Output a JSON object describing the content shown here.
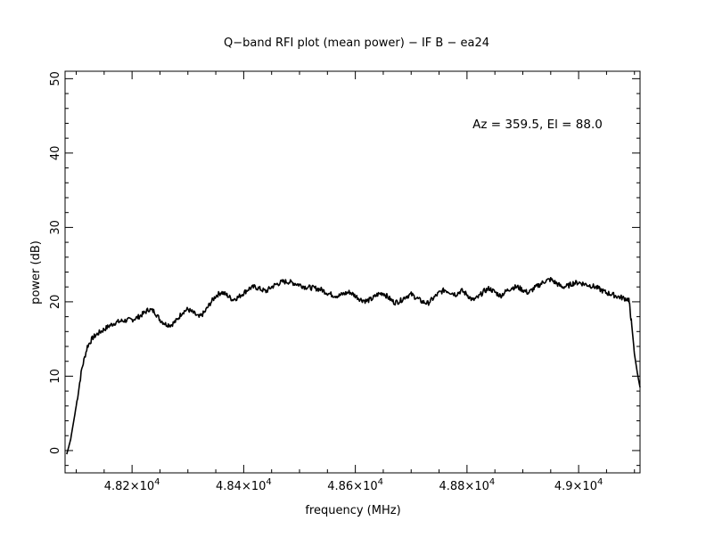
{
  "chart_data": {
    "type": "line",
    "title": "Q−band RFI plot (mean power) − IF B − ea24",
    "xlabel": "frequency (MHz)",
    "ylabel": "power (dB)",
    "annotation": "Az = 359.5, El = 88.0",
    "xlim": [
      48080,
      49110
    ],
    "ylim": [
      -3,
      51
    ],
    "x_ticks": [
      48200,
      48400,
      48600,
      48800,
      49000
    ],
    "x_tick_labels": [
      {
        "mantissa": "4.82×10",
        "exp": "4"
      },
      {
        "mantissa": "4.84×10",
        "exp": "4"
      },
      {
        "mantissa": "4.86×10",
        "exp": "4"
      },
      {
        "mantissa": "4.88×10",
        "exp": "4"
      },
      {
        "mantissa": "4.9×10",
        "exp": "4"
      }
    ],
    "y_ticks": [
      0,
      10,
      20,
      30,
      40,
      50
    ],
    "y_tick_labels": [
      "0",
      "10",
      "20",
      "30",
      "40",
      "50"
    ],
    "line_color": "#000000",
    "series": [
      {
        "x": [
          48083,
          48090,
          48100,
          48110,
          48120,
          48130,
          48140,
          48150,
          48160,
          48170,
          48180,
          48190,
          48200,
          48210,
          48220,
          48230,
          48240,
          48250,
          48260,
          48270,
          48280,
          48290,
          48300,
          48310,
          48320,
          48330,
          48340,
          48350,
          48360,
          48370,
          48380,
          48390,
          48400,
          48410,
          48420,
          48430,
          48440,
          48450,
          48460,
          48470,
          48480,
          48490,
          48500,
          48510,
          48520,
          48530,
          48540,
          48550,
          48560,
          48570,
          48580,
          48590,
          48600,
          48610,
          48620,
          48630,
          48640,
          48650,
          48660,
          48670,
          48680,
          48690,
          48700,
          48710,
          48720,
          48730,
          48740,
          48750,
          48760,
          48770,
          48780,
          48790,
          48800,
          48810,
          48820,
          48830,
          48840,
          48850,
          48860,
          48870,
          48880,
          48890,
          48900,
          48910,
          48920,
          48930,
          48940,
          48950,
          48960,
          48970,
          48980,
          48990,
          49000,
          49010,
          49020,
          49030,
          49040,
          49050,
          49060,
          49070,
          49080,
          49090,
          49095,
          49100,
          49105,
          49110
        ],
        "y": [
          -0.5,
          1.5,
          6,
          11,
          14,
          15.2,
          15.8,
          16.3,
          16.8,
          17.2,
          17.4,
          17.5,
          17.6,
          17.9,
          18.4,
          19.0,
          18.7,
          17.6,
          17.0,
          16.9,
          17.5,
          18.6,
          19.0,
          18.5,
          17.9,
          18.6,
          19.8,
          20.8,
          21.3,
          20.9,
          20.3,
          20.6,
          21.2,
          21.8,
          22.0,
          21.7,
          21.4,
          22.0,
          22.4,
          22.7,
          22.7,
          22.5,
          22.3,
          22.0,
          21.9,
          21.8,
          21.6,
          21.2,
          20.9,
          20.8,
          21.1,
          21.3,
          20.8,
          20.3,
          20.1,
          20.4,
          21.0,
          21.2,
          20.5,
          19.9,
          20.1,
          20.7,
          21.0,
          20.5,
          20.0,
          19.8,
          20.5,
          21.2,
          21.6,
          21.3,
          21.0,
          21.5,
          21.0,
          20.2,
          20.6,
          21.4,
          21.8,
          21.3,
          20.8,
          21.4,
          21.9,
          22.0,
          21.6,
          21.2,
          21.8,
          22.3,
          22.8,
          23.0,
          22.5,
          22.0,
          22.1,
          22.5,
          22.6,
          22.4,
          22.2,
          22.0,
          21.6,
          21.2,
          21.0,
          20.7,
          20.5,
          20.3,
          17,
          13,
          10.5,
          8.5
        ]
      }
    ]
  }
}
